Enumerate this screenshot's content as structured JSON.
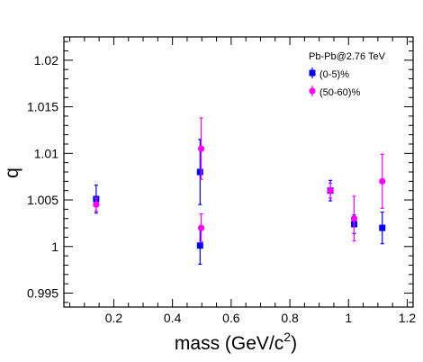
{
  "chart_data": {
    "type": "scatter",
    "title": "",
    "xlabel": "mass (GeV/c",
    "xlabel_sup": "2",
    "xlabel_close": ")",
    "ylabel": "q",
    "xlim": [
      0.03,
      1.22
    ],
    "ylim": [
      0.9935,
      1.0225
    ],
    "x_ticks": [
      0.2,
      0.4,
      0.6,
      0.8,
      1.0,
      1.2
    ],
    "x_tick_labels": [
      "0.2",
      "0.4",
      "0.6",
      "0.8",
      "1",
      "1.2"
    ],
    "y_ticks": [
      0.995,
      1.0,
      1.005,
      1.01,
      1.015,
      1.02
    ],
    "y_tick_labels": [
      "0.995",
      "1",
      "1.005",
      "1.01",
      "1.015",
      "1.02"
    ],
    "x_minor_step": 0.05,
    "y_minor_step": 0.001,
    "grid": false,
    "legend_title": "Pb-Pb@2.76 TeV",
    "legend_position": "top-right",
    "series": [
      {
        "name": "(0-5)%",
        "color": "#0000ff",
        "marker": "square",
        "points": [
          {
            "x": 0.14,
            "y": 1.0051,
            "err": 0.0015
          },
          {
            "x": 0.494,
            "y": 1.008,
            "err": 0.0035
          },
          {
            "x": 0.494,
            "y": 1.0001,
            "err": 0.002
          },
          {
            "x": 0.938,
            "y": 1.006,
            "err": 0.0011
          },
          {
            "x": 1.019,
            "y": 1.0024,
            "err": 0.001
          },
          {
            "x": 1.115,
            "y": 1.002,
            "err": 0.0017
          }
        ]
      },
      {
        "name": "(50-60)%",
        "color": "#ff00ff",
        "marker": "circle",
        "points": [
          {
            "x": 0.14,
            "y": 1.0045,
            "err": 0.0007
          },
          {
            "x": 0.498,
            "y": 1.0105,
            "err": 0.0033
          },
          {
            "x": 0.498,
            "y": 1.002,
            "err": 0.0015
          },
          {
            "x": 0.938,
            "y": 1.006,
            "err": 0.0008
          },
          {
            "x": 1.019,
            "y": 1.003,
            "err": 0.0024
          },
          {
            "x": 1.115,
            "y": 1.007,
            "err": 0.0029
          }
        ]
      }
    ]
  }
}
